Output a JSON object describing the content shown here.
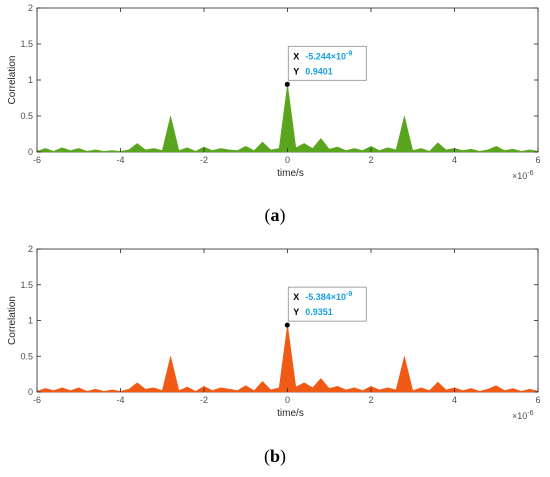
{
  "chart_data": [
    {
      "type": "area",
      "panel_label": "a",
      "ylabel": "Correlation",
      "xlabel": "time/s",
      "x_multiplier": "×10",
      "x_multiplier_exp": "-6",
      "xlim": [
        -6,
        6
      ],
      "ylim": [
        0,
        2
      ],
      "xticks": [
        "-6",
        "-4",
        "-2",
        "0",
        "2",
        "4",
        "6"
      ],
      "yticks": [
        "0",
        "0.5",
        "1",
        "1.5",
        "2"
      ],
      "color": "#5aa51e",
      "datatip": {
        "x_key": "X",
        "x_mant": "-5.244×10",
        "x_exp": "-9",
        "y_key": "Y",
        "y_value": "0.9401",
        "x": -0.005244,
        "y": 0.9401
      },
      "x": [
        -6,
        -5.8,
        -5.6,
        -5.4,
        -5.2,
        -5,
        -4.8,
        -4.6,
        -4.4,
        -4.2,
        -4,
        -3.8,
        -3.6,
        -3.4,
        -3.2,
        -3,
        -2.8,
        -2.6,
        -2.4,
        -2.2,
        -2,
        -1.8,
        -1.6,
        -1.4,
        -1.2,
        -1,
        -0.8,
        -0.6,
        -0.4,
        -0.2,
        0,
        0.2,
        0.4,
        0.6,
        0.8,
        1,
        1.2,
        1.4,
        1.6,
        1.8,
        2,
        2.2,
        2.4,
        2.6,
        2.8,
        3,
        3.2,
        3.4,
        3.6,
        3.8,
        4,
        4.2,
        4.4,
        4.6,
        4.8,
        5,
        5.2,
        5.4,
        5.6,
        5.8,
        6
      ],
      "y": [
        0.01,
        0.05,
        0.01,
        0.06,
        0.02,
        0.05,
        0.01,
        0.03,
        0.01,
        0.02,
        0.01,
        0.03,
        0.12,
        0.03,
        0.05,
        0.02,
        0.5,
        0.02,
        0.06,
        0.01,
        0.07,
        0.02,
        0.05,
        0.03,
        0.02,
        0.08,
        0.02,
        0.14,
        0.03,
        0.05,
        0.94,
        0.06,
        0.12,
        0.05,
        0.19,
        0.04,
        0.07,
        0.02,
        0.05,
        0.02,
        0.08,
        0.02,
        0.06,
        0.03,
        0.5,
        0.02,
        0.05,
        0.01,
        0.13,
        0.03,
        0.05,
        0.02,
        0.04,
        0.01,
        0.03,
        0.08,
        0.02,
        0.04,
        0.01,
        0.03,
        0.01
      ]
    },
    {
      "type": "area",
      "panel_label": "b",
      "ylabel": "Correlation",
      "xlabel": "time/s",
      "x_multiplier": "×10",
      "x_multiplier_exp": "-6",
      "xlim": [
        -6,
        6
      ],
      "ylim": [
        0,
        2
      ],
      "xticks": [
        "-6",
        "-4",
        "-2",
        "0",
        "2",
        "4",
        "6"
      ],
      "yticks": [
        "0",
        "0.5",
        "1",
        "1.5",
        "2"
      ],
      "color": "#f05a14",
      "datatip": {
        "x_key": "X",
        "x_mant": "-5.384×10",
        "x_exp": "-9",
        "y_key": "Y",
        "y_value": "0.9351",
        "x": -0.005384,
        "y": 0.9351
      },
      "x": [
        -6,
        -5.8,
        -5.6,
        -5.4,
        -5.2,
        -5,
        -4.8,
        -4.6,
        -4.4,
        -4.2,
        -4,
        -3.8,
        -3.6,
        -3.4,
        -3.2,
        -3,
        -2.8,
        -2.6,
        -2.4,
        -2.2,
        -2,
        -1.8,
        -1.6,
        -1.4,
        -1.2,
        -1,
        -0.8,
        -0.6,
        -0.4,
        -0.2,
        0,
        0.2,
        0.4,
        0.6,
        0.8,
        1,
        1.2,
        1.4,
        1.6,
        1.8,
        2,
        2.2,
        2.4,
        2.6,
        2.8,
        3,
        3.2,
        3.4,
        3.6,
        3.8,
        4,
        4.2,
        4.4,
        4.6,
        4.8,
        5,
        5.2,
        5.4,
        5.6,
        5.8,
        6
      ],
      "y": [
        0.01,
        0.05,
        0.02,
        0.06,
        0.02,
        0.06,
        0.01,
        0.04,
        0.01,
        0.03,
        0.01,
        0.04,
        0.13,
        0.04,
        0.06,
        0.02,
        0.5,
        0.02,
        0.07,
        0.01,
        0.08,
        0.02,
        0.06,
        0.04,
        0.02,
        0.09,
        0.02,
        0.15,
        0.03,
        0.06,
        0.94,
        0.07,
        0.13,
        0.06,
        0.19,
        0.05,
        0.08,
        0.03,
        0.06,
        0.02,
        0.08,
        0.03,
        0.06,
        0.03,
        0.5,
        0.02,
        0.06,
        0.02,
        0.14,
        0.03,
        0.06,
        0.02,
        0.05,
        0.01,
        0.04,
        0.09,
        0.02,
        0.05,
        0.01,
        0.04,
        0.01
      ]
    }
  ]
}
